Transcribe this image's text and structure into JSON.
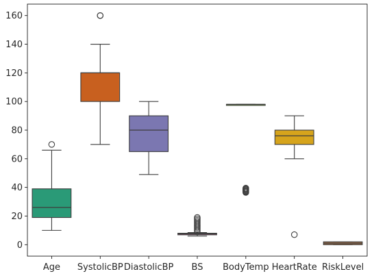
{
  "chart_data": {
    "type": "box",
    "title": "",
    "xlabel": "",
    "ylabel": "",
    "ylim": [
      -8,
      168
    ],
    "yticks": [
      0,
      20,
      40,
      60,
      80,
      100,
      120,
      140,
      160
    ],
    "grid": false,
    "legend": "none",
    "categories": [
      "Age",
      "SystolicBP",
      "DiastolicBP",
      "BS",
      "BodyTemp",
      "HeartRate",
      "RiskLevel"
    ],
    "series": [
      {
        "category": "Age",
        "color": "#2a9a77",
        "whislo": 10,
        "q1": 19,
        "med": 26,
        "q3": 39,
        "whishi": 66,
        "fliers": [
          70
        ]
      },
      {
        "category": "SystolicBP",
        "color": "#c8601f",
        "whislo": 70,
        "q1": 100,
        "med": 120,
        "q3": 120,
        "whishi": 140,
        "fliers": [
          160,
          160
        ]
      },
      {
        "category": "DiastolicBP",
        "color": "#7b77b1",
        "whislo": 49,
        "q1": 65,
        "med": 80,
        "q3": 90,
        "whishi": 100,
        "fliers": []
      },
      {
        "category": "BS",
        "color": "#d03a88",
        "whislo": 6,
        "q1": 6.9,
        "med": 7.5,
        "q3": 8,
        "whishi": 8.5,
        "fliers": [
          9,
          10,
          11,
          12,
          13,
          14,
          15,
          16,
          17,
          18,
          19
        ]
      },
      {
        "category": "BodyTemp",
        "color": "#6aa327",
        "whislo": 98,
        "q1": 98,
        "med": 98,
        "q3": 98,
        "whishi": 98,
        "fliers": [
          36.5,
          37,
          37.5,
          38,
          38.5,
          39,
          39.5
        ]
      },
      {
        "category": "HeartRate",
        "color": "#d6a41c",
        "whislo": 60,
        "q1": 70,
        "med": 76,
        "q3": 80,
        "whishi": 90,
        "fliers": [
          7
        ]
      },
      {
        "category": "RiskLevel",
        "color": "#a0704a",
        "whislo": 0,
        "q1": 0,
        "med": 1,
        "q3": 2,
        "whishi": 2,
        "fliers": []
      }
    ]
  }
}
